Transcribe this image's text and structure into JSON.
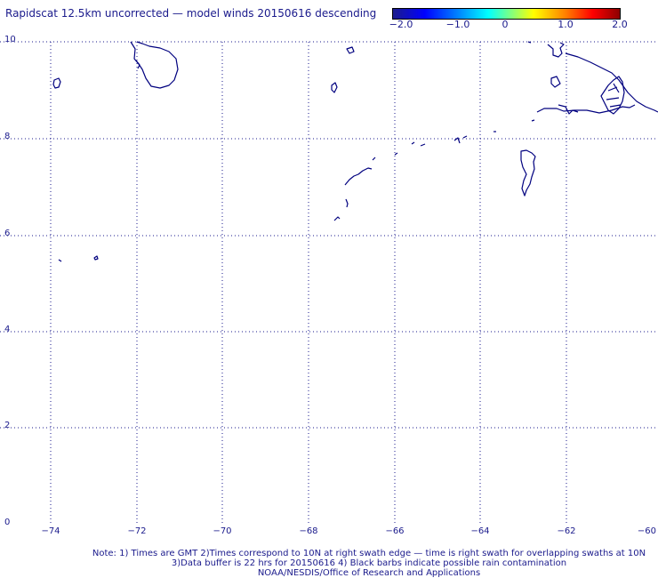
{
  "title": "Rapidscat 12.5km uncorrected — model winds 20150616 descending",
  "colorbar": {
    "ticks": [
      "−2.0",
      "−1.0",
      "0",
      "1.0",
      "2.0"
    ],
    "colors": [
      "#1c1c8c",
      "#0000ff",
      "#00ffff",
      "#ffff00",
      "#ff0000",
      "#8c0000"
    ]
  },
  "map": {
    "y_labels": [
      "10",
      "8",
      "6",
      "4",
      "2",
      "0"
    ],
    "x_labels": [
      "−74",
      "−72",
      "−70",
      "−68",
      "−66",
      "−64",
      "−62",
      "−60"
    ],
    "coastline_color": "#00007f"
  },
  "notes": {
    "line1": "Note: 1) Times are GMT 2)Times correspond to 10N at right swath edge — time is right swath for overlapping swaths at 10N",
    "line2": "3)Data buffer is 22 hrs for 20150616 4) Black barbs indicate possible rain contamination",
    "line3": "NOAA/NESDIS/Office of Research and Applications"
  }
}
